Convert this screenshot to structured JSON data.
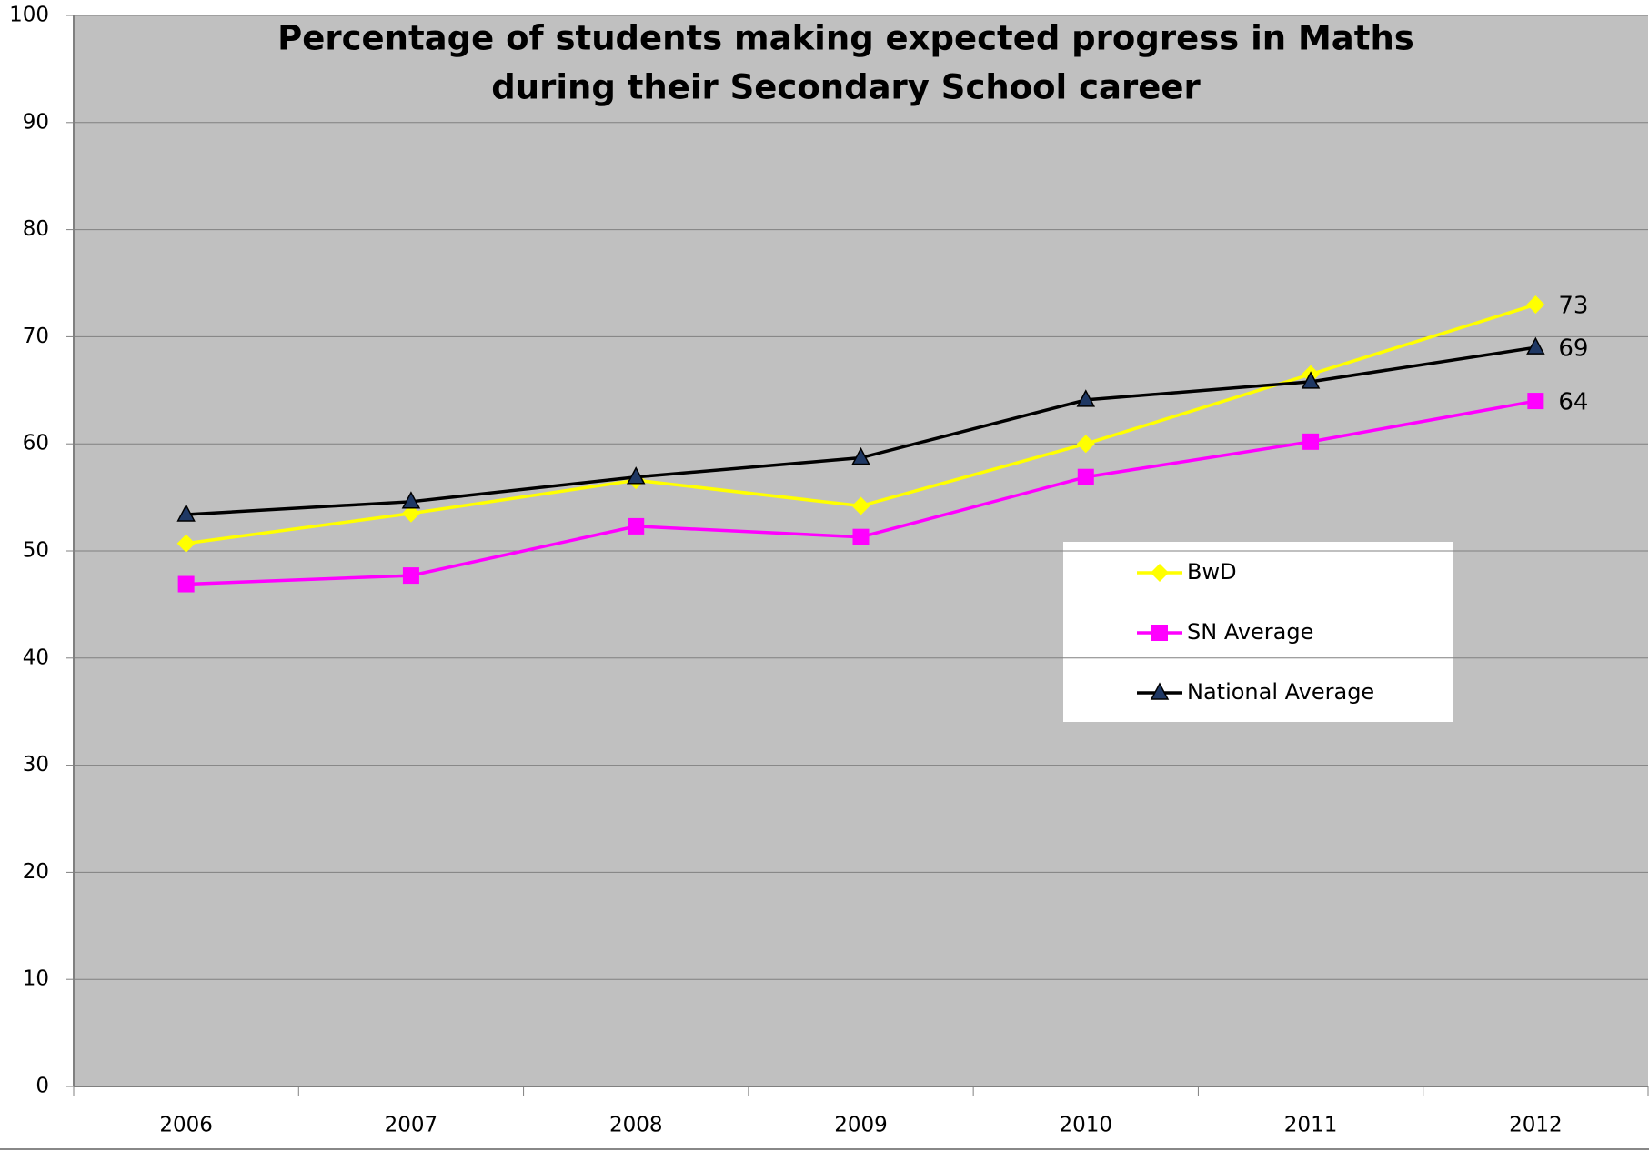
{
  "chart_data": {
    "type": "line",
    "title": [
      "Percentage of students making expected progress in Maths",
      "during their Secondary School career"
    ],
    "categories": [
      "2006",
      "2007",
      "2008",
      "2009",
      "2010",
      "2011",
      "2012"
    ],
    "series": [
      {
        "name": "BwD",
        "color": "#ffff00",
        "marker": "diamond",
        "label_color": "#ffff00",
        "values": [
          50.7,
          53.5,
          56.6,
          54.2,
          60,
          66.5,
          73
        ]
      },
      {
        "name": "SN Average",
        "color": "#ff00ff",
        "marker": "square",
        "label_color": "#ff00ff",
        "values": [
          46.9,
          47.7,
          52.3,
          51.3,
          56.9,
          60.2,
          64
        ]
      },
      {
        "name": "National Average",
        "color": "#000000",
        "marker": "triangle",
        "marker_color": "#1f3864",
        "label_color": "#1f3f7f",
        "values": [
          53.4,
          54.6,
          56.9,
          58.7,
          64.1,
          65.8,
          69
        ]
      }
    ],
    "ylim": [
      0,
      100
    ],
    "yticks": [
      0,
      10,
      20,
      30,
      40,
      50,
      60,
      70,
      80,
      90,
      100
    ],
    "grid": true,
    "legend": "right"
  }
}
